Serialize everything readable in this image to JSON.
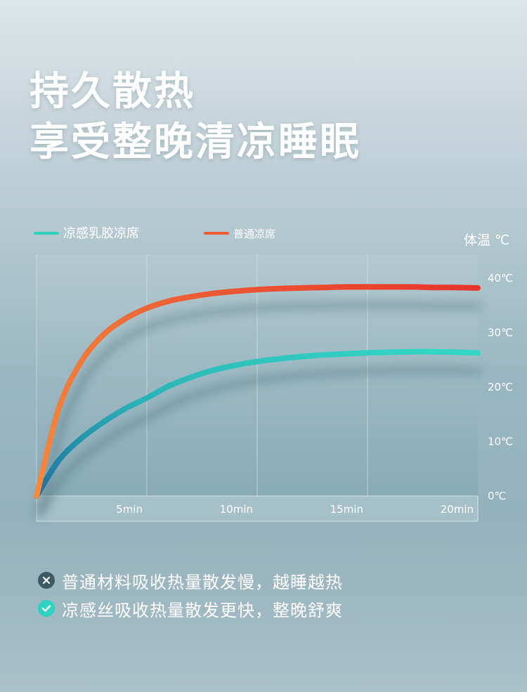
{
  "headline": {
    "line1": "持久散热",
    "line2": "享受整晚清凉睡眠"
  },
  "chart_data": {
    "type": "line",
    "ylabel": "体温 ℃",
    "xlim": [
      0,
      20
    ],
    "ylim": [
      0,
      40
    ],
    "x_ticks": [
      {
        "value": 5,
        "label": "5min"
      },
      {
        "value": 10,
        "label": "10min"
      },
      {
        "value": 15,
        "label": "15min"
      },
      {
        "value": 20,
        "label": "20min"
      }
    ],
    "y_ticks": [
      {
        "value": 0,
        "label": "0℃"
      },
      {
        "value": 10,
        "label": "10℃"
      },
      {
        "value": 20,
        "label": "20℃"
      },
      {
        "value": 30,
        "label": "30℃"
      },
      {
        "value": 40,
        "label": "40℃"
      }
    ],
    "grid": true,
    "legend_position": "top-left",
    "series": [
      {
        "name": "凉感乳胶凉席",
        "color": "#2fd0bf",
        "x": [
          0,
          1,
          2,
          3,
          4,
          5,
          6,
          7,
          8,
          9,
          10,
          11,
          12,
          13,
          14,
          15,
          16,
          17,
          18,
          19,
          20
        ],
        "y": [
          0,
          6.5,
          10.5,
          13.5,
          16,
          18,
          20.2,
          21.8,
          23.1,
          24.0,
          24.7,
          25.2,
          25.6,
          25.9,
          26.1,
          26.3,
          26.4,
          26.5,
          26.5,
          26.4,
          26.3
        ]
      },
      {
        "name": "普通凉席",
        "color": "#ef5a37",
        "x": [
          0,
          1,
          2,
          3,
          4,
          5,
          6,
          7,
          8,
          9,
          10,
          11,
          12,
          13,
          14,
          15,
          16,
          17,
          18,
          19,
          20
        ],
        "y": [
          0,
          16,
          24.5,
          29.5,
          32.5,
          34.5,
          35.8,
          36.6,
          37.2,
          37.6,
          37.9,
          38.1,
          38.2,
          38.3,
          38.4,
          38.4,
          38.4,
          38.4,
          38.3,
          38.3,
          38.2
        ]
      }
    ]
  },
  "notes": [
    {
      "icon": "x-circle-icon",
      "text": "普通材料吸收热量散发慢，越睡越热"
    },
    {
      "icon": "check-circle-icon",
      "text": "凉感丝吸收热量散发更快，整晚舒爽"
    }
  ]
}
